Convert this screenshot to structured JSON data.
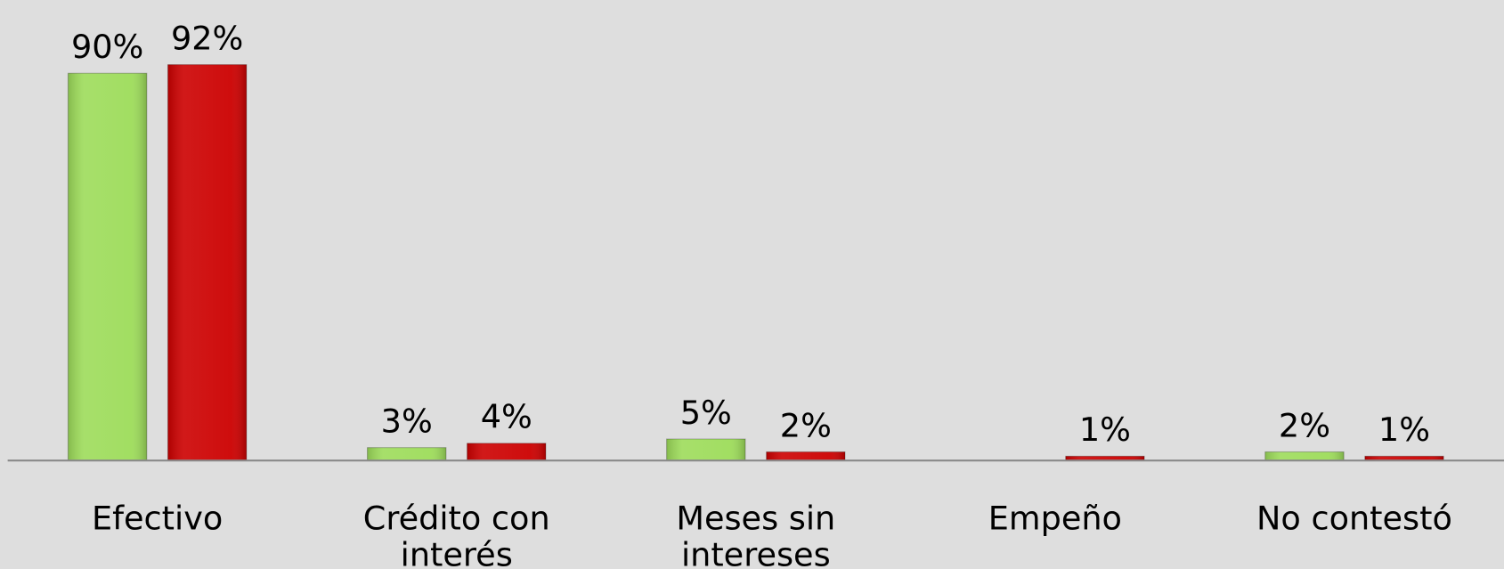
{
  "chart_data": {
    "type": "bar",
    "categories": [
      "Efectivo",
      "Crédito con interés",
      "Meses sin intereses",
      "Empeño",
      "No contestó"
    ],
    "series": [
      {
        "color": "#9ddc5a",
        "values": [
          90,
          3,
          5,
          null,
          2
        ],
        "value_labels": [
          "90%",
          "3%",
          "5%",
          null,
          "2%"
        ]
      },
      {
        "color": "#cc0000",
        "values": [
          92,
          4,
          2,
          1,
          1
        ],
        "value_labels": [
          "92%",
          "4%",
          "2%",
          "1%",
          "1%"
        ]
      }
    ],
    "ylim": [
      0,
      107
    ]
  }
}
